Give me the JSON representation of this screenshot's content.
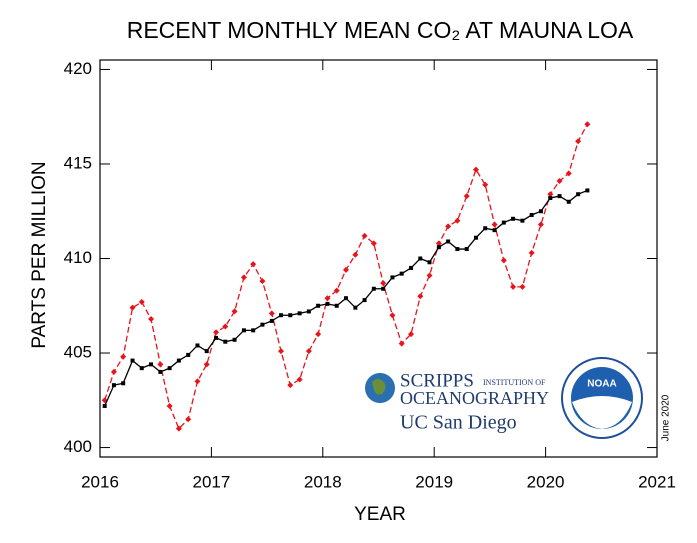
{
  "chart_data": {
    "type": "line",
    "title": "RECENT MONTHLY MEAN CO₂ AT MAUNA LOA",
    "x_label": "YEAR",
    "y_label": "PARTS PER MILLION",
    "date_note": "June 2020",
    "logos": {
      "scripps_main": "SCRIPPS",
      "scripps_small": "INSTITUTION OF",
      "scripps_sub": "OCEANOGRAPHY",
      "ucsd": "UC San Diego",
      "noaa": "NOAA"
    },
    "x": [
      2016.042,
      2016.125,
      2016.208,
      2016.292,
      2016.375,
      2016.458,
      2016.542,
      2016.625,
      2016.708,
      2016.792,
      2016.875,
      2016.958,
      2017.042,
      2017.125,
      2017.208,
      2017.292,
      2017.375,
      2017.458,
      2017.542,
      2017.625,
      2017.708,
      2017.792,
      2017.875,
      2017.958,
      2018.042,
      2018.125,
      2018.208,
      2018.292,
      2018.375,
      2018.458,
      2018.542,
      2018.625,
      2018.708,
      2018.792,
      2018.875,
      2018.958,
      2019.042,
      2019.125,
      2019.208,
      2019.292,
      2019.375,
      2019.458,
      2019.542,
      2019.625,
      2019.708,
      2019.792,
      2019.875,
      2019.958,
      2020.042,
      2020.125,
      2020.208,
      2020.292,
      2020.375
    ],
    "series": [
      {
        "color": "#e8141c",
        "style": "dashed",
        "marker": "diamond",
        "values": [
          402.5,
          404.0,
          404.8,
          407.4,
          407.7,
          406.8,
          404.4,
          402.2,
          401.0,
          401.5,
          403.5,
          404.4,
          406.1,
          406.4,
          407.2,
          409.0,
          409.7,
          408.8,
          407.1,
          405.1,
          403.3,
          403.6,
          405.1,
          406.0,
          407.9,
          408.3,
          409.4,
          410.2,
          411.2,
          410.8,
          408.7,
          407.0,
          405.5,
          406.0,
          408.0,
          409.1,
          410.8,
          411.7,
          412.0,
          413.3,
          414.7,
          413.9,
          411.8,
          409.9,
          408.5,
          408.5,
          410.3,
          411.8,
          413.4,
          414.1,
          414.5,
          416.2,
          417.1
        ]
      },
      {
        "color": "#000000",
        "style": "solid",
        "marker": "square",
        "values": [
          402.2,
          403.3,
          403.4,
          404.6,
          404.2,
          404.4,
          404.0,
          404.2,
          404.6,
          404.9,
          405.4,
          405.1,
          405.8,
          405.6,
          405.7,
          406.2,
          406.2,
          406.5,
          406.7,
          407.0,
          407.0,
          407.1,
          407.2,
          407.5,
          407.6,
          407.5,
          407.9,
          407.4,
          407.8,
          408.4,
          408.4,
          409.0,
          409.2,
          409.5,
          410.0,
          409.8,
          410.6,
          410.9,
          410.5,
          410.5,
          411.1,
          411.6,
          411.5,
          411.9,
          412.1,
          412.0,
          412.3,
          412.5,
          413.2,
          413.3,
          413.0,
          413.4,
          413.6
        ]
      }
    ],
    "xlim": [
      2016,
      2021
    ],
    "xticks": [
      2016,
      2017,
      2018,
      2019,
      2020,
      2021
    ],
    "ylim": [
      399.5,
      420.5
    ],
    "yticks": [
      400,
      405,
      410,
      415,
      420
    ]
  }
}
